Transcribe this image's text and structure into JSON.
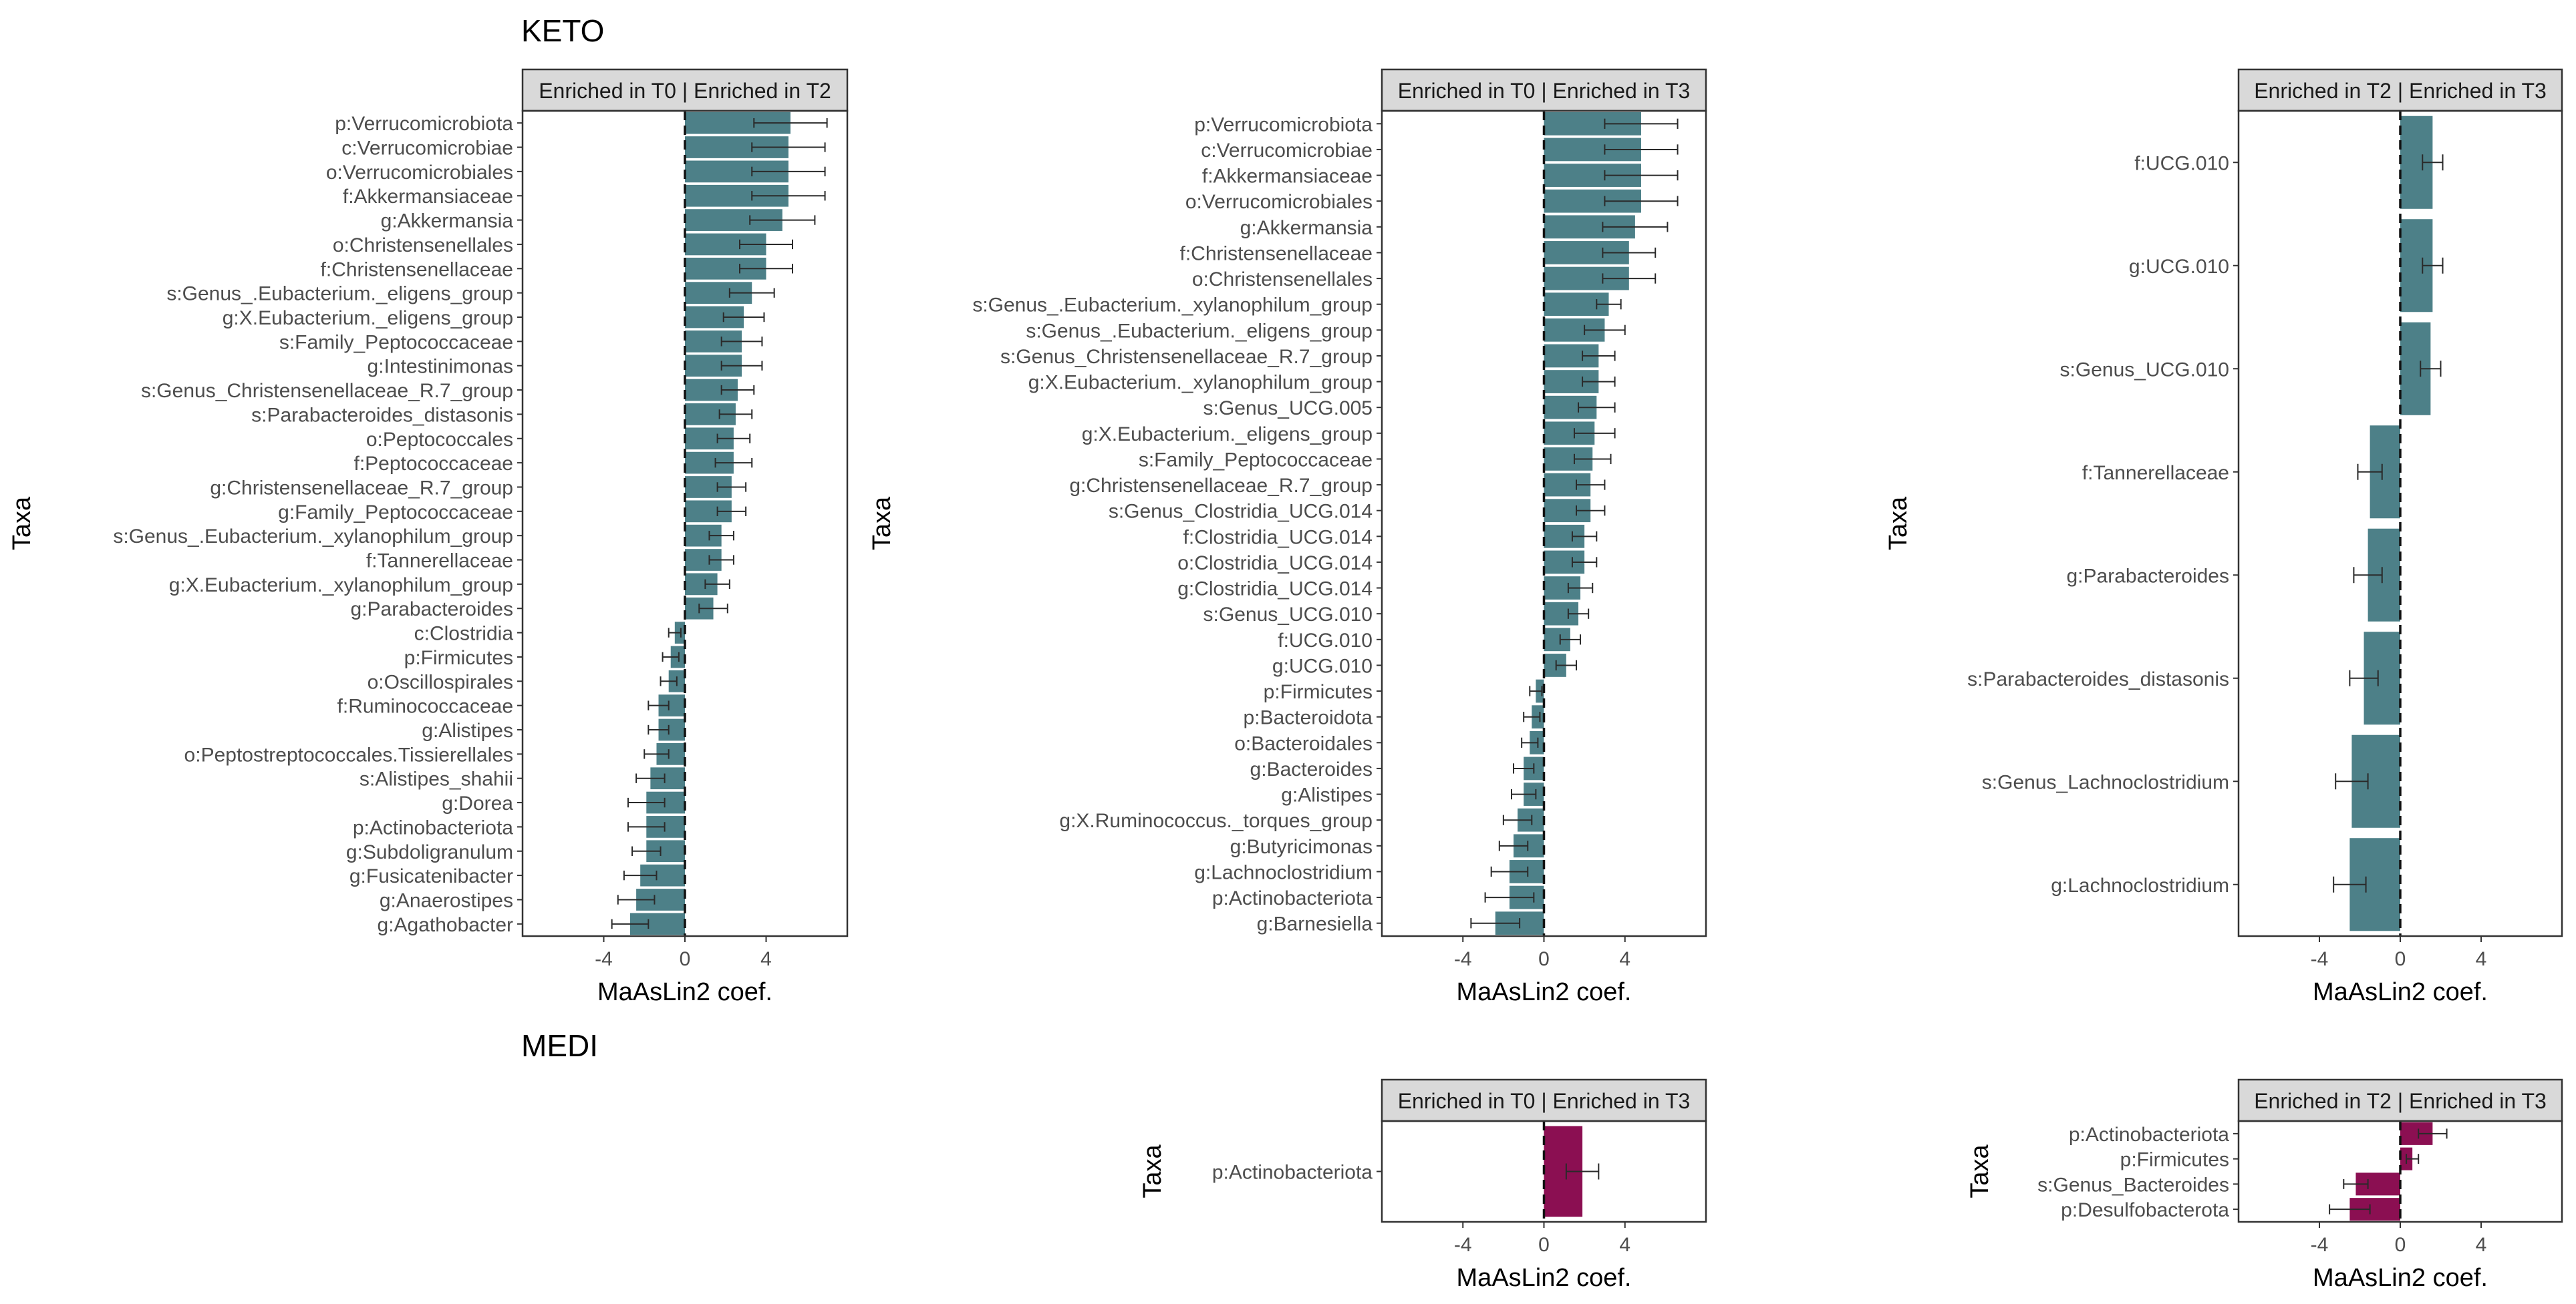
{
  "colors": {
    "keto": "#4d8088",
    "medi": "#8b0f52",
    "strip_bg": "#d9d9d9",
    "frame": "#333333"
  },
  "section_titles": {
    "keto": "KETO",
    "medi": "MEDI"
  },
  "chart_data": [
    {
      "id": "keto-t0-t2",
      "type": "bar",
      "orientation": "horizontal",
      "group": "KETO",
      "strip": "Enriched in T0 | Enriched in T2",
      "xlabel": "MaAsLin2 coef.",
      "ylabel": "Taxa",
      "xlim": [
        -8,
        8
      ],
      "xticks": [
        -4,
        0,
        4
      ],
      "categories": [
        "p:Verrucomicrobiota",
        "c:Verrucomicrobiae",
        "o:Verrucomicrobiales",
        "f:Akkermansiaceae",
        "g:Akkermansia",
        "o:Christensenellales",
        "f:Christensenellaceae",
        "s:Genus_.Eubacterium._eligens_group",
        "g:X.Eubacterium._eligens_group",
        "s:Family_Peptococcaceae",
        "g:Intestinimonas",
        "s:Genus_Christensenellaceae_R.7_group",
        "s:Parabacteroides_distasonis",
        "o:Peptococcales",
        "f:Peptococcaceae",
        "g:Christensenellaceae_R.7_group",
        "g:Family_Peptococcaceae",
        "s:Genus_.Eubacterium._xylanophilum_group",
        "f:Tannerellaceae",
        "g:X.Eubacterium._xylanophilum_group",
        "g:Parabacteroides",
        "c:Clostridia",
        "p:Firmicutes",
        "o:Oscillospirales",
        "f:Ruminococcaceae",
        "g:Alistipes",
        "o:Peptostreptococcales.Tissierellales",
        "s:Alistipes_shahii",
        "g:Dorea",
        "p:Actinobacteriota",
        "g:Subdoligranulum",
        "g:Fusicatenibacter",
        "g:Anaerostipes",
        "g:Agathobacter"
      ],
      "values": [
        5.2,
        5.1,
        5.1,
        5.1,
        4.8,
        4.0,
        4.0,
        3.3,
        2.9,
        2.8,
        2.8,
        2.6,
        2.5,
        2.4,
        2.4,
        2.3,
        2.3,
        1.8,
        1.8,
        1.6,
        1.4,
        -0.5,
        -0.7,
        -0.8,
        -1.3,
        -1.3,
        -1.4,
        -1.7,
        -1.9,
        -1.9,
        -1.9,
        -2.2,
        -2.4,
        -2.7
      ],
      "errors": [
        1.8,
        1.8,
        1.8,
        1.8,
        1.6,
        1.3,
        1.3,
        1.1,
        1.0,
        1.0,
        1.0,
        0.8,
        0.8,
        0.8,
        0.9,
        0.7,
        0.7,
        0.6,
        0.6,
        0.6,
        0.7,
        0.3,
        0.4,
        0.4,
        0.5,
        0.5,
        0.6,
        0.7,
        0.9,
        0.9,
        0.7,
        0.8,
        0.9,
        0.9
      ]
    },
    {
      "id": "keto-t0-t3",
      "type": "bar",
      "orientation": "horizontal",
      "group": "KETO",
      "strip": "Enriched in T0 | Enriched in T3",
      "xlabel": "MaAsLin2 coef.",
      "ylabel": "Taxa",
      "xlim": [
        -8,
        8
      ],
      "xticks": [
        -4,
        0,
        4
      ],
      "categories": [
        "p:Verrucomicrobiota",
        "c:Verrucomicrobiae",
        "f:Akkermansiaceae",
        "o:Verrucomicrobiales",
        "g:Akkermansia",
        "f:Christensenellaceae",
        "o:Christensenellales",
        "s:Genus_.Eubacterium._xylanophilum_group",
        "s:Genus_.Eubacterium._eligens_group",
        "s:Genus_Christensenellaceae_R.7_group",
        "g:X.Eubacterium._xylanophilum_group",
        "s:Genus_UCG.005",
        "g:X.Eubacterium._eligens_group",
        "s:Family_Peptococcaceae",
        "g:Christensenellaceae_R.7_group",
        "s:Genus_Clostridia_UCG.014",
        "f:Clostridia_UCG.014",
        "o:Clostridia_UCG.014",
        "g:Clostridia_UCG.014",
        "s:Genus_UCG.010",
        "f:UCG.010",
        "g:UCG.010",
        "p:Firmicutes",
        "p:Bacteroidota",
        "o:Bacteroidales",
        "g:Bacteroides",
        "g:Alistipes",
        "g:X.Ruminococcus._torques_group",
        "g:Butyricimonas",
        "g:Lachnoclostridium",
        "p:Actinobacteriota",
        "g:Barnesiella"
      ],
      "values": [
        4.8,
        4.8,
        4.8,
        4.8,
        4.5,
        4.2,
        4.2,
        3.2,
        3.0,
        2.7,
        2.7,
        2.6,
        2.5,
        2.4,
        2.3,
        2.3,
        2.0,
        2.0,
        1.8,
        1.7,
        1.3,
        1.1,
        -0.4,
        -0.6,
        -0.7,
        -1.0,
        -1.0,
        -1.3,
        -1.5,
        -1.7,
        -1.7,
        -2.4
      ],
      "errors": [
        1.8,
        1.8,
        1.8,
        1.8,
        1.6,
        1.3,
        1.3,
        0.6,
        1.0,
        0.8,
        0.8,
        0.9,
        1.0,
        0.9,
        0.7,
        0.7,
        0.6,
        0.6,
        0.6,
        0.5,
        0.5,
        0.5,
        0.3,
        0.4,
        0.4,
        0.5,
        0.6,
        0.7,
        0.7,
        0.9,
        1.2,
        1.2
      ]
    },
    {
      "id": "keto-t2-t3",
      "type": "bar",
      "orientation": "horizontal",
      "group": "KETO",
      "strip": "Enriched in T2 | Enriched in T3",
      "xlabel": "MaAsLin2 coef.",
      "ylabel": "Taxa",
      "xlim": [
        -8,
        8
      ],
      "xticks": [
        -4,
        0,
        4
      ],
      "categories": [
        "f:UCG.010",
        "g:UCG.010",
        "s:Genus_UCG.010",
        "f:Tannerellaceae",
        "g:Parabacteroides",
        "s:Parabacteroides_distasonis",
        "s:Genus_Lachnoclostridium",
        "g:Lachnoclostridium"
      ],
      "values": [
        1.6,
        1.6,
        1.5,
        -1.5,
        -1.6,
        -1.8,
        -2.4,
        -2.5
      ],
      "errors": [
        0.5,
        0.5,
        0.5,
        0.6,
        0.7,
        0.7,
        0.8,
        0.8
      ]
    },
    {
      "id": "medi-t0-t3",
      "type": "bar",
      "orientation": "horizontal",
      "group": "MEDI",
      "strip": "Enriched in T0 | Enriched in T3",
      "xlabel": "MaAsLin2 coef.",
      "ylabel": "Taxa",
      "xlim": [
        -8,
        8
      ],
      "xticks": [
        -4,
        0,
        4
      ],
      "categories": [
        "p:Actinobacteriota"
      ],
      "values": [
        1.9
      ],
      "errors": [
        0.8
      ]
    },
    {
      "id": "medi-t2-t3",
      "type": "bar",
      "orientation": "horizontal",
      "group": "MEDI",
      "strip": "Enriched in T2 | Enriched in T3",
      "xlabel": "MaAsLin2 coef.",
      "ylabel": "Taxa",
      "xlim": [
        -8,
        8
      ],
      "xticks": [
        -4,
        0,
        4
      ],
      "categories": [
        "p:Actinobacteriota",
        "p:Firmicutes",
        "s:Genus_Bacteroides",
        "p:Desulfobacterota"
      ],
      "values": [
        1.6,
        0.6,
        -2.2,
        -2.5
      ],
      "errors": [
        0.7,
        0.3,
        0.6,
        1.0
      ]
    }
  ]
}
